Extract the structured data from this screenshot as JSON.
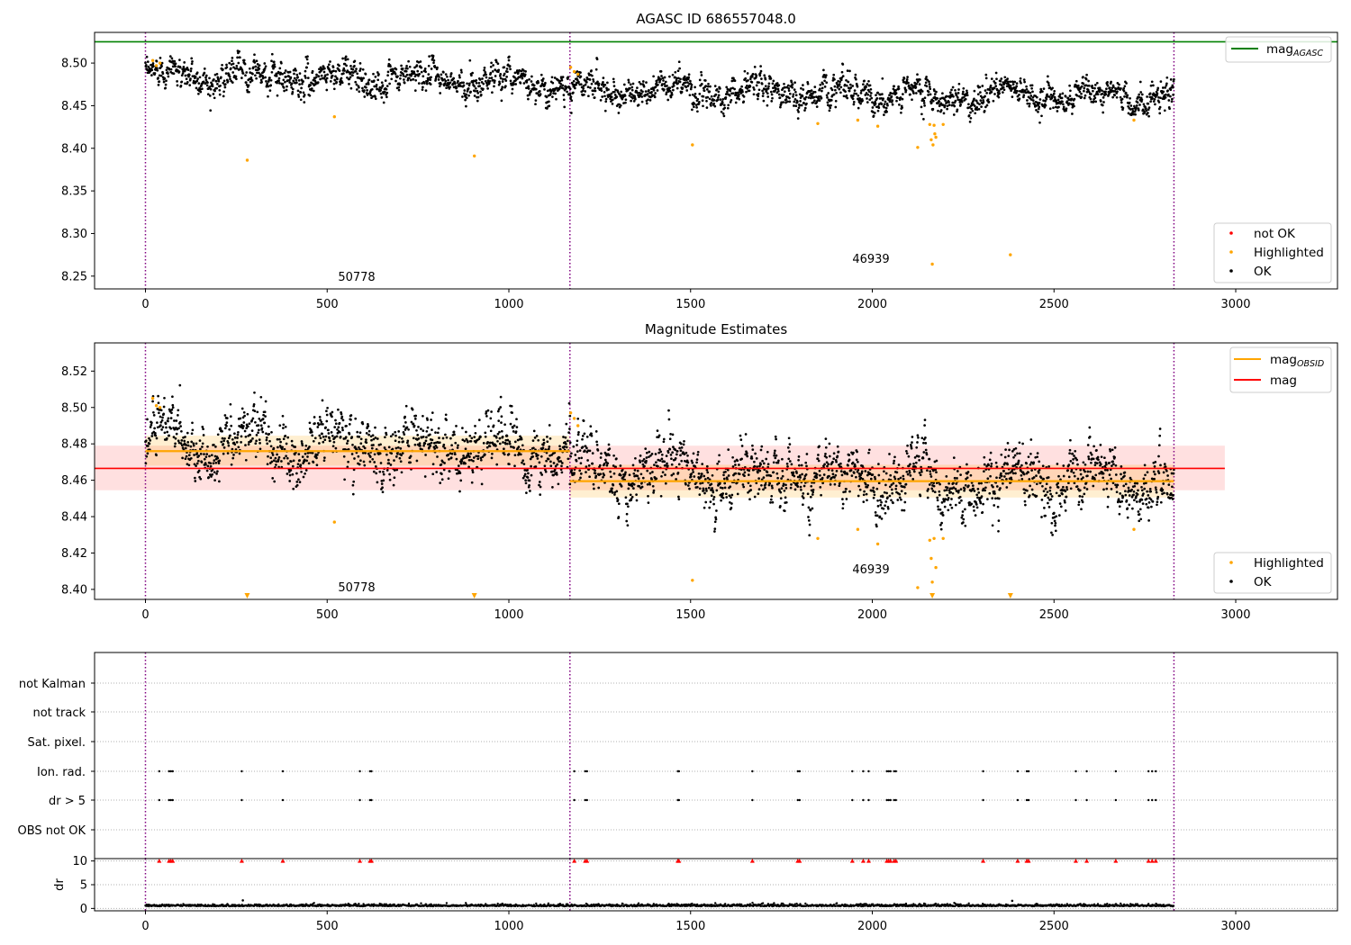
{
  "colors": {
    "ok": "#000000",
    "highlighted": "#ffa500",
    "not_ok": "#ff0000",
    "agasc_line": "#008000",
    "obsid_line": "#ffa500",
    "mag_line": "#ff0000",
    "obs_sep": "#800080",
    "grid": "#b0b0b0"
  },
  "chart_data": [
    {
      "type": "scatter",
      "title": "AGASC ID 686557048.0",
      "xlabel": "",
      "ylabel": "",
      "xlim": [
        -140,
        3280
      ],
      "ylim": [
        8.235,
        8.536
      ],
      "xticks": [
        0,
        500,
        1000,
        1500,
        2000,
        2500,
        3000
      ],
      "yticks": [
        8.25,
        8.3,
        8.35,
        8.4,
        8.45,
        8.5
      ],
      "ytick_labels": [
        "8.25",
        "8.30",
        "8.35",
        "8.40",
        "8.45",
        "8.50"
      ],
      "obs_boundaries": [
        0,
        1168,
        2830
      ],
      "obs_labels": [
        {
          "text": "50778",
          "x": 580,
          "y": 8.245
        },
        {
          "text": "46939",
          "x": 2000,
          "y": 8.266
        }
      ],
      "mag_agasc": {
        "value": 8.525,
        "x_range": [
          -140,
          3280
        ]
      },
      "series": [
        {
          "name": "OK",
          "segments": [
            {
              "x0": 0,
              "x1": 1168,
              "base0": 8.487,
              "base1": 8.478,
              "amp": 0.012
            },
            {
              "x0": 1168,
              "x1": 2830,
              "base0": 8.47,
              "base1": 8.46,
              "amp": 0.012
            }
          ]
        },
        {
          "name": "Highlighted",
          "points": [
            [
              20,
              8.503
            ],
            [
              30,
              8.497
            ],
            [
              40,
              8.5
            ],
            [
              280,
              8.386
            ],
            [
              520,
              8.437
            ],
            [
              905,
              8.391
            ],
            [
              1170,
              8.495
            ],
            [
              1180,
              8.49
            ],
            [
              1190,
              8.487
            ],
            [
              1505,
              8.404
            ],
            [
              1850,
              8.429
            ],
            [
              1960,
              8.433
            ],
            [
              2015,
              8.426
            ],
            [
              2125,
              8.401
            ],
            [
              2158,
              8.428
            ],
            [
              2162,
              8.41
            ],
            [
              2165,
              8.264
            ],
            [
              2167,
              8.404
            ],
            [
              2170,
              8.427
            ],
            [
              2172,
              8.417
            ],
            [
              2175,
              8.413
            ],
            [
              2195,
              8.428
            ],
            [
              2380,
              8.275
            ],
            [
              2720,
              8.433
            ]
          ]
        },
        {
          "name": "not OK",
          "points": []
        }
      ],
      "legends": [
        {
          "position": "top-right",
          "entries": [
            {
              "label": "mag",
              "sub": "AGASC",
              "kind": "line",
              "color": "#008000"
            }
          ]
        },
        {
          "position": "bottom-right",
          "entries": [
            {
              "label": "not OK",
              "kind": "marker",
              "color": "#ff0000"
            },
            {
              "label": "Highlighted",
              "kind": "marker",
              "color": "#ffa500"
            },
            {
              "label": "OK",
              "kind": "marker",
              "color": "#000000"
            }
          ]
        }
      ]
    },
    {
      "type": "scatter",
      "title": "Magnitude Estimates",
      "xlabel": "",
      "ylabel": "",
      "xlim": [
        -140,
        3280
      ],
      "ylim": [
        8.3945,
        8.5355
      ],
      "xticks": [
        0,
        500,
        1000,
        1500,
        2000,
        2500,
        3000
      ],
      "yticks": [
        8.4,
        8.42,
        8.44,
        8.46,
        8.48,
        8.5,
        8.52
      ],
      "ytick_labels": [
        "8.40",
        "8.42",
        "8.44",
        "8.46",
        "8.48",
        "8.50",
        "8.52"
      ],
      "obs_boundaries": [
        0,
        1168,
        2830
      ],
      "obs_labels": [
        {
          "text": "50778",
          "x": 580,
          "y": 8.4005
        },
        {
          "text": "46939",
          "x": 2000,
          "y": 8.411
        }
      ],
      "mag": {
        "value": 8.4665,
        "band": [
          8.4545,
          8.479
        ],
        "x_range": [
          -140,
          2970
        ]
      },
      "mag_obsid": [
        {
          "x0": 0,
          "x1": 1168,
          "value": 8.476,
          "band": [
            8.468,
            8.4845
          ]
        },
        {
          "x0": 1168,
          "x1": 2830,
          "value": 8.4595,
          "band": [
            8.4505,
            8.4685
          ]
        }
      ],
      "series": [
        {
          "name": "OK",
          "segments": [
            {
              "x0": 0,
              "x1": 1168,
              "base0": 8.483,
              "base1": 8.476,
              "amp": 0.011
            },
            {
              "x0": 1168,
              "x1": 2830,
              "base0": 8.466,
              "base1": 8.458,
              "amp": 0.011
            }
          ]
        },
        {
          "name": "Highlighted",
          "points": [
            [
              20,
              8.505
            ],
            [
              30,
              8.501
            ],
            [
              40,
              8.5
            ],
            [
              520,
              8.437
            ],
            [
              1170,
              8.497
            ],
            [
              1180,
              8.494
            ],
            [
              1190,
              8.49
            ],
            [
              1505,
              8.405
            ],
            [
              1850,
              8.428
            ],
            [
              1960,
              8.433
            ],
            [
              2015,
              8.425
            ],
            [
              2125,
              8.401
            ],
            [
              2158,
              8.427
            ],
            [
              2162,
              8.417
            ],
            [
              2165,
              8.404
            ],
            [
              2170,
              8.428
            ],
            [
              2175,
              8.412
            ],
            [
              2195,
              8.428
            ],
            [
              2720,
              8.433
            ]
          ]
        },
        {
          "name": "Highlighted (off-scale)",
          "marker": "triangle-down",
          "x": [
            280,
            905,
            2165,
            2380
          ]
        }
      ],
      "legends": [
        {
          "position": "top-right",
          "entries": [
            {
              "label": "mag",
              "sub": "OBSID",
              "kind": "line",
              "color": "#ffa500"
            },
            {
              "label": "mag",
              "kind": "line",
              "color": "#ff0000"
            }
          ]
        },
        {
          "position": "bottom-right",
          "entries": [
            {
              "label": "Highlighted",
              "kind": "marker",
              "color": "#ffa500"
            },
            {
              "label": "OK",
              "kind": "marker",
              "color": "#000000"
            }
          ]
        }
      ]
    },
    {
      "type": "scatter",
      "title": "",
      "xlabel": "",
      "ylabel": "",
      "xlim": [
        -140,
        3280
      ],
      "categories": [
        "not Kalman",
        "not track",
        "Sat. pixel.",
        "Ion. rad.",
        "dr > 5",
        "OBS not OK"
      ],
      "flag_x": [
        38,
        65,
        70,
        75,
        265,
        378,
        590,
        618,
        622,
        1180,
        1210,
        1215,
        1465,
        1468,
        1670,
        1795,
        1800,
        1945,
        1975,
        1990,
        2040,
        2045,
        2050,
        2060,
        2065,
        2305,
        2400,
        2425,
        2430,
        2560,
        2590,
        2670,
        2760,
        2770,
        2780
      ],
      "ion_flags": true,
      "dr_flags": true,
      "obs_boundaries": [
        0,
        1168,
        2830
      ]
    },
    {
      "type": "scatter",
      "title": "",
      "xlabel": "",
      "ylabel": "dr",
      "xlim": [
        -140,
        3280
      ],
      "ylim": [
        -0.5,
        10.5
      ],
      "yticks": [
        0,
        5,
        10
      ],
      "ytick_labels": [
        "0",
        "5",
        "10"
      ],
      "clip_value": 10,
      "dr_baseline": 0.45,
      "outlier_points": [
        [
          268,
          1.7
        ],
        [
          2385,
          1.6
        ]
      ],
      "clipped_x": [
        38,
        65,
        70,
        75,
        265,
        378,
        590,
        618,
        622,
        1180,
        1210,
        1215,
        1465,
        1468,
        1670,
        1795,
        1800,
        1945,
        1975,
        1990,
        2040,
        2045,
        2050,
        2060,
        2065,
        2305,
        2400,
        2425,
        2430,
        2560,
        2590,
        2670,
        2760,
        2770,
        2780
      ],
      "xticks": [
        0,
        500,
        1000,
        1500,
        2000,
        2500,
        3000
      ],
      "obs_boundaries": [
        0,
        1168,
        2830
      ]
    }
  ]
}
